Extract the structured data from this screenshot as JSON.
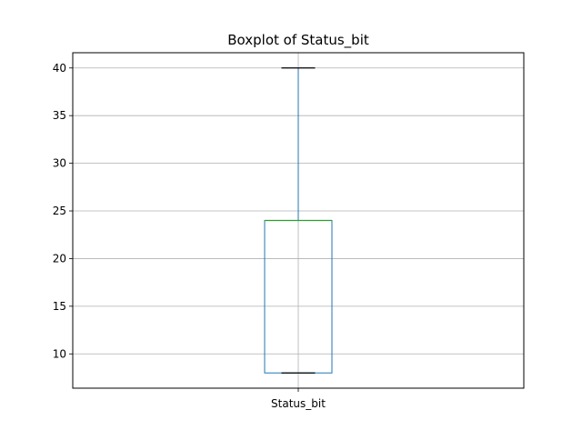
{
  "chart_data": {
    "type": "boxplot",
    "title": "Boxplot of Status_bit",
    "xlabel": "",
    "ylabel": "",
    "categories": [
      "Status_bit"
    ],
    "boxes": [
      {
        "category": "Status_bit",
        "whisker_low": 8,
        "q1": 8,
        "median": 24,
        "q3": 24,
        "whisker_high": 40,
        "outliers": []
      }
    ],
    "ylim": [
      6.4,
      41.6
    ],
    "yticks": [
      10,
      15,
      20,
      25,
      30,
      35,
      40
    ],
    "grid": true,
    "legend": "none",
    "colors": {
      "box": "#1f77b4",
      "median": "#2ca02c",
      "whisker_cap": "#000000",
      "grid": "#b0b0b0",
      "axes": "#000000"
    }
  }
}
